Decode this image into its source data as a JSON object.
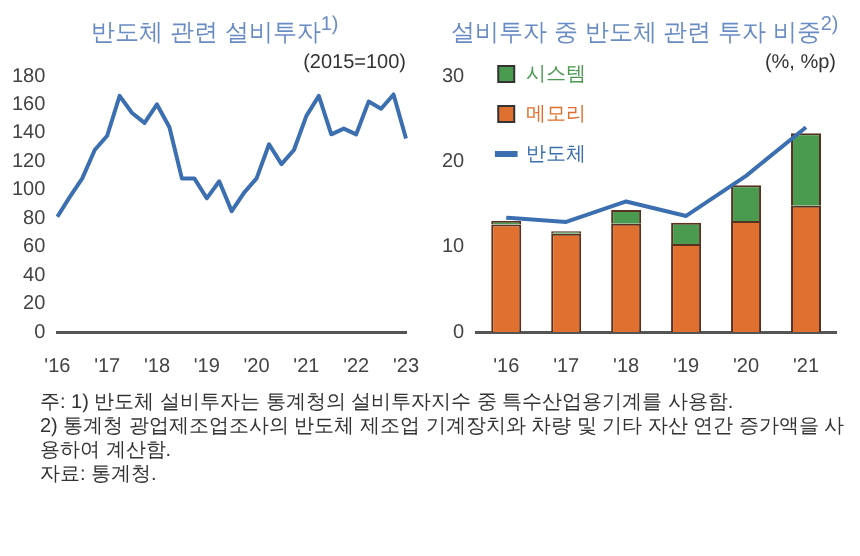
{
  "chart_data": [
    {
      "type": "line",
      "title": "반도체 관련 설비투자$^{1)}$",
      "annotations": [
        "(2015=100)"
      ],
      "categories": [
        "'16",
        null,
        null,
        null,
        "'17",
        null,
        null,
        null,
        "'18",
        null,
        null,
        null,
        "'19",
        null,
        null,
        null,
        "'20",
        null,
        null,
        null,
        "'21",
        null,
        null,
        null,
        "'22",
        null,
        null,
        null,
        "'23"
      ],
      "series": [
        {
          "color": "#3c6fb0",
          "values": [
            81,
            95,
            108,
            128,
            138,
            166,
            154,
            147,
            160,
            144,
            108,
            108,
            94,
            106,
            85,
            98,
            108,
            132,
            118,
            128,
            152,
            166,
            139,
            143,
            139,
            162,
            157,
            167,
            136
          ]
        }
      ],
      "ylim": [
        0,
        180
      ],
      "yticks": [
        0,
        20,
        40,
        60,
        80,
        100,
        120,
        140,
        160,
        180
      ]
    },
    {
      "type": "bar",
      "stacked": true,
      "title": "설비투자 중 반도체 관련 투자 비중$^{2)}$",
      "annotations": [
        "(%, %p)",
        "주: 1) 반도체 설비투자는 통계청의 설비투자지수 중 특수산업용기계를 사용함.",
        "2) 통계청 광업제조업조사의 반도체 제조업 기계장치와 차량 및 기타 자산 연간 증가액을 사용하여 계산함.",
        "자료: 통계청."
      ],
      "categories": [
        "'16",
        "'17",
        "'18",
        "'19",
        "'20",
        "'21"
      ],
      "series": [
        {
          "name": "메모리",
          "color": "#e0702f",
          "values": [
            12.6,
            11.5,
            12.7,
            10.3,
            13.0,
            14.8
          ]
        },
        {
          "name": "시스템",
          "color": "#4a9a4f",
          "values": [
            0.4,
            0.3,
            1.6,
            2.5,
            4.2,
            8.5
          ]
        },
        {
          "name": "반도체",
          "type": "line",
          "color": "#3c6fb0",
          "values": [
            13.4,
            12.9,
            15.3,
            13.6,
            18.3,
            24.0
          ]
        }
      ],
      "legend": "top left",
      "ylim": [
        0,
        30
      ],
      "yticks": [
        0,
        10,
        20,
        30
      ]
    }
  ]
}
